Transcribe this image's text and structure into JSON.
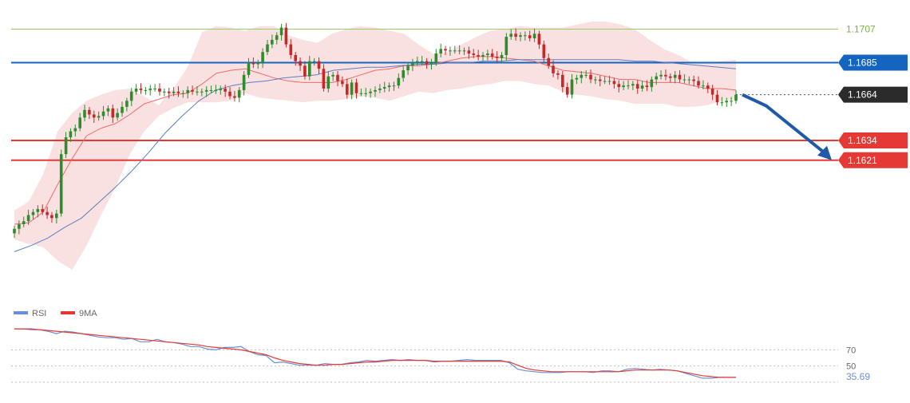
{
  "chart_data": [
    {
      "type": "candlestick",
      "panel": "price",
      "title": "",
      "xlabel": "",
      "ylabel": "",
      "ylim": [
        1.1535,
        1.1712
      ],
      "grid": false,
      "indicators": [
        "Bollinger Bands",
        "moving average (red)",
        "moving average (blue)"
      ],
      "levels": [
        {
          "name": "level-1707",
          "label": "1.1707",
          "value": 1.1707,
          "color": "#9ccc65",
          "kind": "thin-line"
        },
        {
          "name": "level-1685",
          "label": "1.1685",
          "value": 1.1685,
          "color": "#1565c0",
          "kind": "line"
        },
        {
          "name": "last-price",
          "label": "1.1664",
          "value": 1.1664,
          "color": "#2b2b2b",
          "kind": "dotted"
        },
        {
          "name": "level-1634",
          "label": "1.1634",
          "value": 1.1634,
          "color": "#e53935",
          "kind": "line"
        },
        {
          "name": "level-1621",
          "label": "1.1621",
          "value": 1.1621,
          "color": "#e53935",
          "kind": "line"
        }
      ],
      "forecast_arrow": {
        "from": 1.1664,
        "to": 1.1621,
        "direction": "down",
        "color": "#1f5aa8"
      },
      "series": [
        {
          "name": "close",
          "values": [
            1.1576,
            1.1579,
            1.1581,
            1.1585,
            1.1587,
            1.1589,
            1.1587,
            1.1585,
            1.1583,
            1.1586,
            1.1625,
            1.1636,
            1.164,
            1.1642,
            1.1649,
            1.1654,
            1.1651,
            1.1649,
            1.165,
            1.1653,
            1.1655,
            1.1649,
            1.1652,
            1.1656,
            1.166,
            1.1666,
            1.1668,
            1.1667,
            1.1667,
            1.1668,
            1.1668,
            1.1666,
            1.1666,
            1.1665,
            1.1666,
            1.1665,
            1.1665,
            1.1667,
            1.1666,
            1.1666,
            1.1666,
            1.1667,
            1.1667,
            1.1667,
            1.1668,
            1.1666,
            1.1663,
            1.1662,
            1.1667,
            1.1677,
            1.1685,
            1.1684,
            1.1685,
            1.1692,
            1.1697,
            1.17,
            1.1703,
            1.1708,
            1.1697,
            1.169,
            1.1686,
            1.1683,
            1.1676,
            1.1686,
            1.1686,
            1.1681,
            1.1668,
            1.1676,
            1.1677,
            1.1673,
            1.1671,
            1.1664,
            1.1672,
            1.1665,
            1.1665,
            1.1665,
            1.1666,
            1.1667,
            1.1668,
            1.1669,
            1.167,
            1.167,
            1.1675,
            1.168,
            1.1683,
            1.1685,
            1.1686,
            1.1686,
            1.1684,
            1.1685,
            1.1691,
            1.1694,
            1.1693,
            1.1693,
            1.1693,
            1.1693,
            1.1693,
            1.1691,
            1.169,
            1.1689,
            1.169,
            1.1691,
            1.1689,
            1.1688,
            1.169,
            1.1702,
            1.1704,
            1.1702,
            1.1703,
            1.1703,
            1.1701,
            1.1704,
            1.1697,
            1.1688,
            1.1683,
            1.1678,
            1.1677,
            1.1669,
            1.1664,
            1.1674,
            1.1675,
            1.1677,
            1.1677,
            1.1674,
            1.1674,
            1.1673,
            1.1673,
            1.1673,
            1.1671,
            1.1669,
            1.167,
            1.167,
            1.1671,
            1.1668,
            1.167,
            1.1669,
            1.1674,
            1.1676,
            1.1677,
            1.1676,
            1.1675,
            1.1677,
            1.1674,
            1.1674,
            1.1674,
            1.1673,
            1.167,
            1.167,
            1.1668,
            1.1664,
            1.1659,
            1.1659,
            1.166,
            1.166,
            1.1664
          ]
        },
        {
          "name": "bollinger-upper",
          "values": [
            1.1588,
            1.1594,
            1.1612,
            1.164,
            1.1652,
            1.166,
            1.1664,
            1.1667,
            1.1668,
            1.1663,
            1.1657,
            1.1668,
            1.1682,
            1.1705,
            1.1709,
            1.1708,
            1.1706,
            1.1709,
            1.1709,
            1.1703,
            1.17,
            1.1698,
            1.1704,
            1.1707,
            1.1709,
            1.1708,
            1.1706,
            1.1704,
            1.1697,
            1.1691,
            1.1692,
            1.1697,
            1.1702,
            1.1706,
            1.1707,
            1.1709,
            1.1708,
            1.1708,
            1.1708,
            1.171,
            1.1712,
            1.1712,
            1.171,
            1.1707,
            1.17,
            1.1694,
            1.169,
            1.1685,
            1.1685,
            1.1686,
            1.1687
          ]
        },
        {
          "name": "bollinger-lower",
          "values": [
            1.1569,
            1.1566,
            1.1564,
            1.1555,
            1.1549,
            1.1565,
            1.1585,
            1.1603,
            1.1625,
            1.164,
            1.165,
            1.1655,
            1.1659,
            1.1659,
            1.1659,
            1.166,
            1.1665,
            1.1662,
            1.1661,
            1.166,
            1.1659,
            1.166,
            1.166,
            1.1661,
            1.1663,
            1.1662,
            1.166,
            1.1663,
            1.1666,
            1.1665,
            1.1667,
            1.1668,
            1.167,
            1.1671,
            1.1673,
            1.1673,
            1.1671,
            1.167,
            1.1666,
            1.1664,
            1.1663,
            1.1661,
            1.166,
            1.1658,
            1.1658,
            1.1658,
            1.1656,
            1.1656,
            1.1657,
            1.166,
            1.1661
          ]
        },
        {
          "name": "ma-red",
          "values": [
            1.1579,
            1.158,
            1.1587,
            1.1605,
            1.1622,
            1.1637,
            1.1642,
            1.1645,
            1.1651,
            1.1658,
            1.1661,
            1.1664,
            1.1665,
            1.1671,
            1.1678,
            1.168,
            1.1681,
            1.1678,
            1.1675,
            1.1673,
            1.1672,
            1.1672,
            1.1672,
            1.1674,
            1.1677,
            1.168,
            1.1681,
            1.1683,
            1.1683,
            1.1684,
            1.1686,
            1.1688,
            1.1689,
            1.1689,
            1.1688,
            1.1687,
            1.1686,
            1.1683,
            1.168,
            1.1679,
            1.1678,
            1.1676,
            1.1674,
            1.1674,
            1.1672,
            1.1672,
            1.1672,
            1.167,
            1.1668,
            1.1668,
            1.1667
          ]
        },
        {
          "name": "ma-blue",
          "values": [
            1.1561,
            1.1565,
            1.157,
            1.1577,
            1.1583,
            1.1593,
            1.1603,
            1.1614,
            1.1626,
            1.1639,
            1.165,
            1.166,
            1.1667,
            1.167,
            1.1672,
            1.1673,
            1.1675,
            1.1676,
            1.1677,
            1.168,
            1.1681,
            1.1682,
            1.1682,
            1.1683,
            1.1684,
            1.1684,
            1.1685,
            1.1685,
            1.1686,
            1.1686,
            1.1687,
            1.1687,
            1.1687,
            1.1687,
            1.1687,
            1.1687,
            1.1687,
            1.1686,
            1.1686,
            1.1685,
            1.1684,
            1.1683,
            1.1682,
            1.1681
          ]
        }
      ]
    },
    {
      "type": "line",
      "panel": "rsi",
      "title": "",
      "ylim": [
        25,
        100
      ],
      "levels": [
        {
          "label": "70",
          "value": 70,
          "style": "dotted"
        },
        {
          "label": "50",
          "value": 50,
          "style": "dotted"
        },
        {
          "label": "30",
          "value": 30,
          "style": "dotted"
        }
      ],
      "last_value_label": "35.69",
      "legend": [
        {
          "label": "RSI",
          "color": "#6a8fd9"
        },
        {
          "label": "9MA",
          "color": "#e53935"
        }
      ],
      "series": [
        {
          "name": "RSI",
          "color": "#6a8fd9",
          "values": [
            96,
            96,
            95,
            95,
            93,
            90,
            93,
            92,
            90,
            88,
            86,
            85,
            85,
            83,
            84,
            80,
            80,
            83,
            80,
            79,
            77,
            74,
            74,
            71,
            70,
            73,
            73,
            74,
            68,
            64,
            63,
            54,
            55,
            53,
            51,
            51,
            51,
            53,
            52,
            52,
            54,
            55,
            57,
            56,
            57,
            58,
            57,
            58,
            57,
            57,
            55,
            56,
            56,
            57,
            58,
            57,
            57,
            57,
            57,
            54,
            46,
            44,
            43,
            42,
            42,
            42,
            43,
            43,
            43,
            42,
            44,
            44,
            43,
            46,
            47,
            46,
            45,
            46,
            45,
            44,
            41,
            38,
            35,
            35,
            36,
            36,
            36
          ]
        },
        {
          "name": "9MA",
          "color": "#e53935",
          "values": [
            96,
            96,
            96,
            95,
            94,
            93,
            92,
            91,
            90,
            89,
            88,
            87,
            86,
            85,
            84,
            83,
            82,
            81,
            80,
            79,
            78,
            77,
            76,
            74,
            73,
            72,
            71,
            70,
            68,
            66,
            64,
            60,
            57,
            55,
            53,
            52,
            51,
            51,
            52,
            52,
            53,
            54,
            55,
            55,
            56,
            57,
            57,
            57,
            57,
            57,
            56,
            56,
            56,
            56,
            56,
            56,
            56,
            56,
            56,
            55,
            51,
            47,
            45,
            44,
            43,
            43,
            43,
            43,
            43,
            43,
            43,
            43,
            43,
            44,
            45,
            45,
            45,
            45,
            45,
            44,
            42,
            40,
            38,
            37,
            36,
            36,
            36
          ]
        }
      ]
    }
  ]
}
